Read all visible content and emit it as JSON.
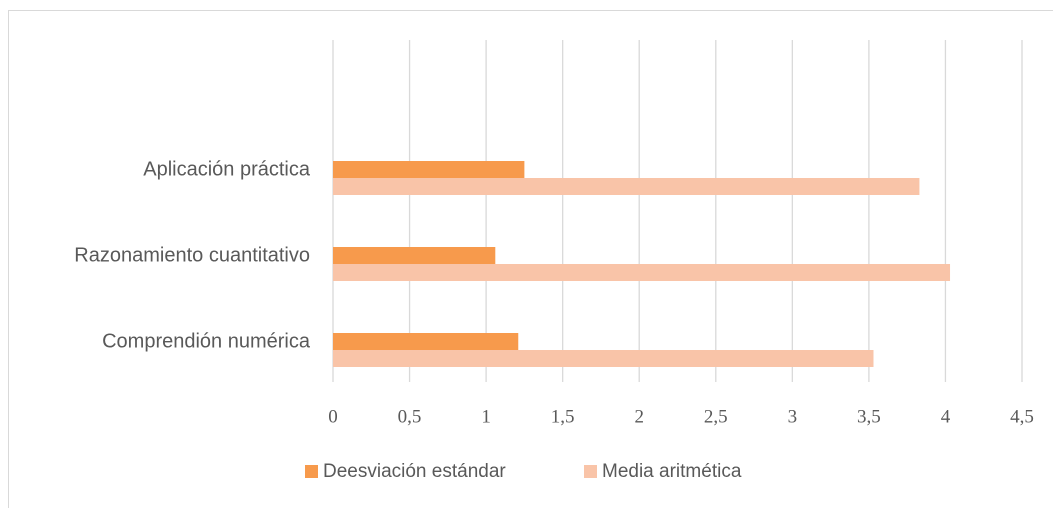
{
  "chart_data": {
    "type": "bar",
    "orientation": "horizontal",
    "categories": [
      "Aplicación práctica",
      "Razonamiento cuantitativo",
      "Comprendión numérica"
    ],
    "series": [
      {
        "name": "Deesviación estándar",
        "color": "#f79a4c",
        "values": [
          1.25,
          1.06,
          1.21
        ]
      },
      {
        "name": "Media aritmética",
        "color": "#f9c4a8",
        "values": [
          3.83,
          4.03,
          3.53
        ]
      }
    ],
    "xlim": [
      0,
      4.5
    ],
    "xticks": [
      0,
      {
        "value": 0.5,
        "label": "0,5"
      },
      1,
      {
        "value": 1.5,
        "label": "1,5"
      },
      2,
      {
        "value": 2.5,
        "label": "2,5"
      },
      3,
      {
        "value": 3.5,
        "label": "3,5"
      },
      4,
      {
        "value": 4.5,
        "label": "4,5"
      }
    ],
    "grid": true,
    "legend": "bottom"
  }
}
